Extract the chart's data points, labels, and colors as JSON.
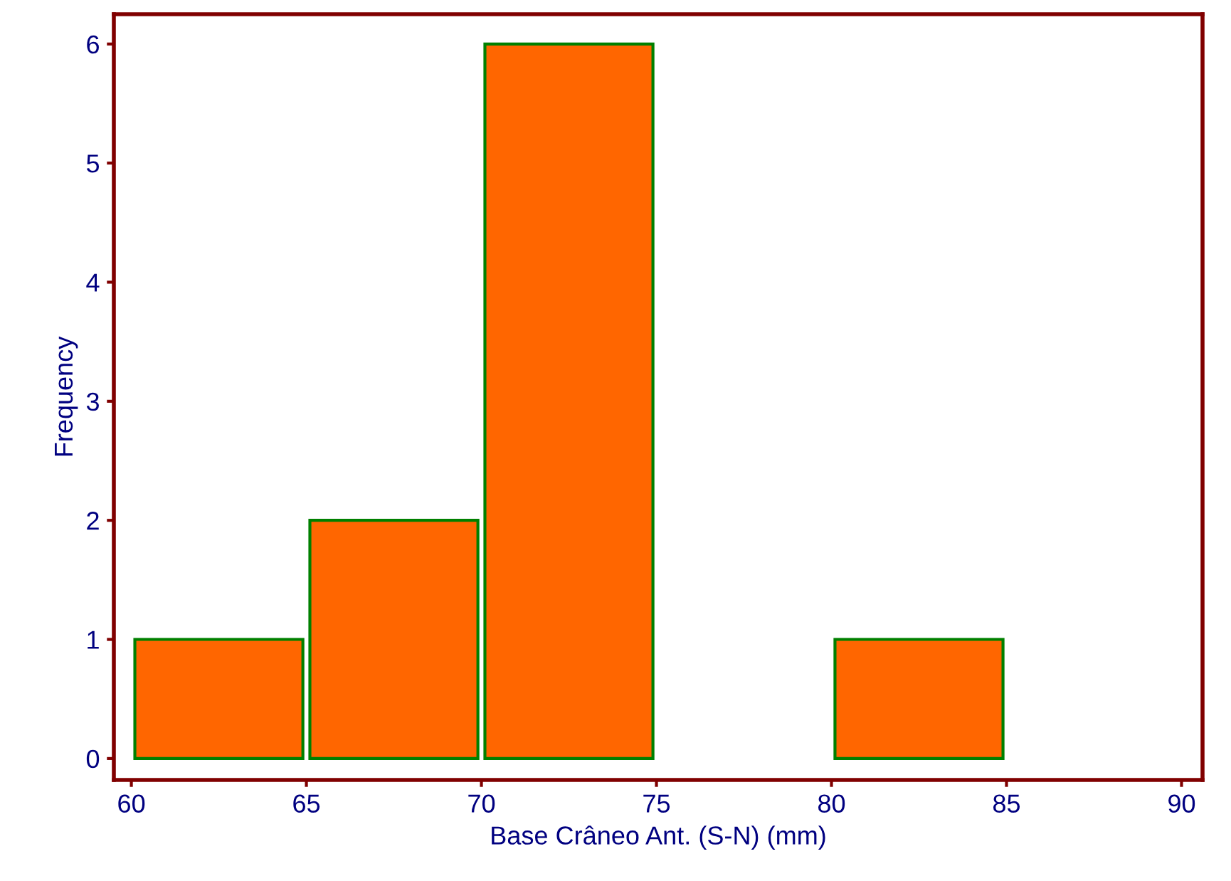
{
  "chart_data": {
    "type": "histogram",
    "xlabel": "Base Crâneo Ant. (S-N) (mm)",
    "ylabel": "Frequency",
    "bins": [
      60,
      65,
      70,
      75,
      80,
      85
    ],
    "values": [
      1,
      2,
      6,
      0,
      1
    ],
    "color": "#ff6600",
    "xlim": [
      59.5,
      90.6
    ],
    "ylim": [
      -0.18,
      6.25
    ],
    "xticks": [
      60,
      65,
      70,
      75,
      80,
      85,
      90
    ],
    "yticks": [
      0,
      1,
      2,
      3,
      4,
      5,
      6
    ],
    "grid": false
  }
}
